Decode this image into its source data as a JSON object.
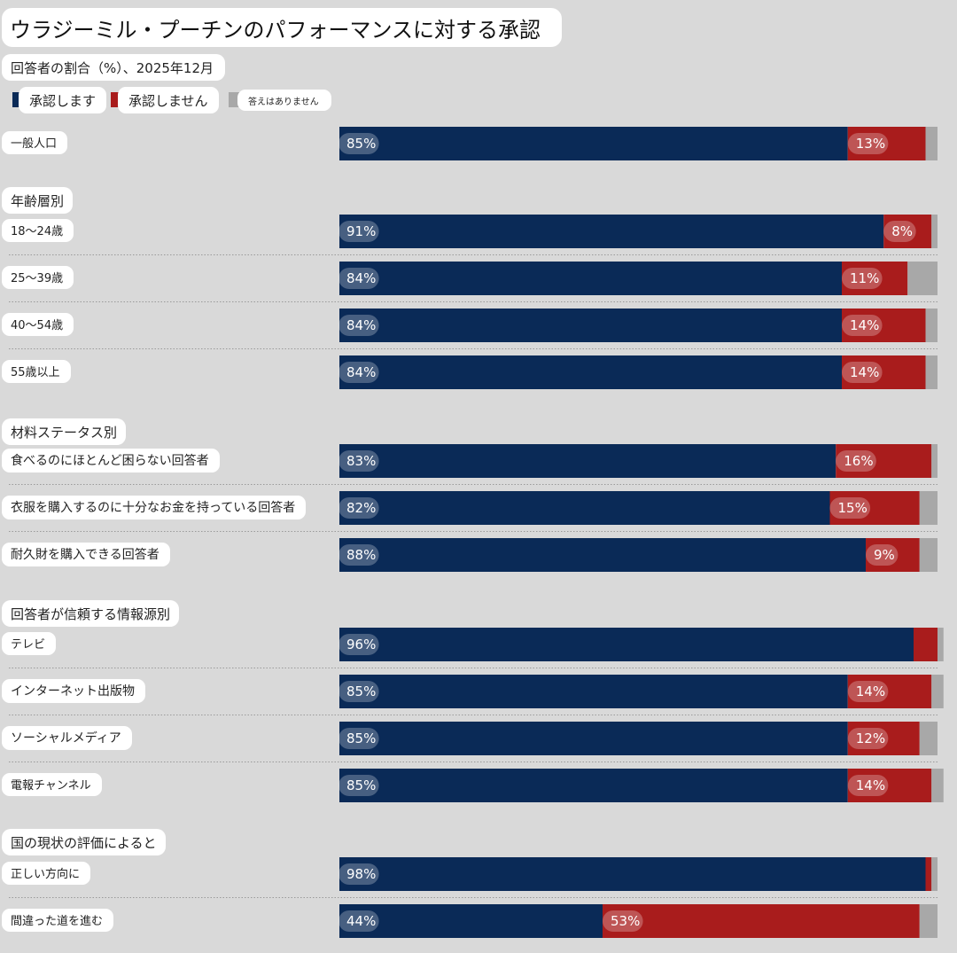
{
  "chart_data": {
    "type": "bar",
    "orientation": "horizontal",
    "stacked": true,
    "title": "ウラジーミル・プーチンのパフォーマンスに対する承認",
    "subtitle": "回答者の割合（%）、2025年12月",
    "legend": [
      {
        "name": "承認します",
        "color": "#0a2a57"
      },
      {
        "name": "承認しません",
        "color": "#a91c1c"
      },
      {
        "name": "答えはありません",
        "color": "#a8a8a8"
      }
    ],
    "xlim": [
      0,
      100
    ],
    "groups": [
      {
        "label": "",
        "rows": [
          {
            "label": "一般人口",
            "approve": 85,
            "disapprove": 13,
            "no_answer": 2,
            "approve_label": "85%",
            "disapprove_label": "13%"
          }
        ]
      },
      {
        "label": "年齢層別",
        "rows": [
          {
            "label": "18〜24歳",
            "approve": 91,
            "disapprove": 8,
            "no_answer": 1,
            "approve_label": "91%",
            "disapprove_label": "8%"
          },
          {
            "label": "25〜39歳",
            "approve": 84,
            "disapprove": 11,
            "no_answer": 5,
            "approve_label": "84%",
            "disapprove_label": "11%"
          },
          {
            "label": "40〜54歳",
            "approve": 84,
            "disapprove": 14,
            "no_answer": 2,
            "approve_label": "84%",
            "disapprove_label": "14%"
          },
          {
            "label": "55歳以上",
            "approve": 84,
            "disapprove": 14,
            "no_answer": 2,
            "approve_label": "84%",
            "disapprove_label": "14%"
          }
        ]
      },
      {
        "label": "材料ステータス別",
        "rows": [
          {
            "label": "食べるのにほとんど困らない回答者",
            "approve": 83,
            "disapprove": 16,
            "no_answer": 1,
            "approve_label": "83%",
            "disapprove_label": "16%"
          },
          {
            "label": "衣服を購入するのに十分なお金を持っている回答者",
            "approve": 82,
            "disapprove": 15,
            "no_answer": 3,
            "approve_label": "82%",
            "disapprove_label": "15%"
          },
          {
            "label": "耐久財を購入できる回答者",
            "approve": 88,
            "disapprove": 9,
            "no_answer": 3,
            "approve_label": "88%",
            "disapprove_label": "9%"
          }
        ]
      },
      {
        "label": "回答者が信頼する情報源別",
        "rows": [
          {
            "label": "テレビ",
            "approve": 96,
            "disapprove": 4,
            "no_answer": 1,
            "approve_label": "96%",
            "disapprove_label": ""
          },
          {
            "label": "インターネット出版物",
            "approve": 85,
            "disapprove": 14,
            "no_answer": 2,
            "approve_label": "85%",
            "disapprove_label": "14%"
          },
          {
            "label": "ソーシャルメディア",
            "approve": 85,
            "disapprove": 12,
            "no_answer": 3,
            "approve_label": "85%",
            "disapprove_label": "12%"
          },
          {
            "label": "電報チャンネル",
            "approve": 85,
            "disapprove": 14,
            "no_answer": 2,
            "approve_label": "85%",
            "disapprove_label": "14%"
          }
        ]
      },
      {
        "label": "国の現状の評価によると",
        "rows": [
          {
            "label": "正しい方向に",
            "approve": 98,
            "disapprove": 1,
            "no_answer": 1,
            "approve_label": "98%",
            "disapprove_label": ""
          },
          {
            "label": "間違った道を進む",
            "approve": 44,
            "disapprove": 53,
            "no_answer": 3,
            "approve_label": "44%",
            "disapprove_label": "53%"
          }
        ]
      }
    ]
  }
}
